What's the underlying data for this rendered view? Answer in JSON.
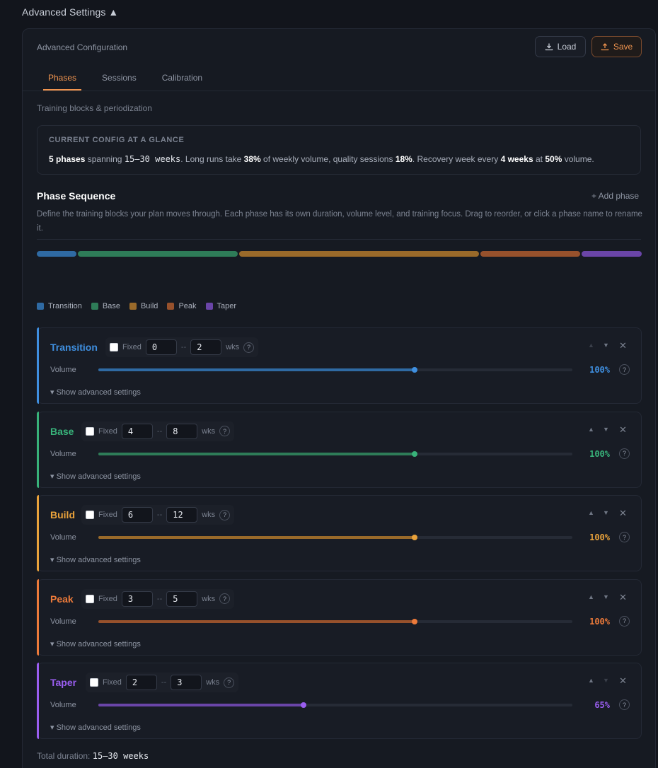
{
  "header": {
    "title": "Advanced Settings ▲"
  },
  "panel": {
    "title": "Advanced Configuration",
    "load_label": "Load",
    "save_label": "Save",
    "tabs": [
      {
        "label": "Phases",
        "active": true
      },
      {
        "label": "Sessions",
        "active": false
      },
      {
        "label": "Calibration",
        "active": false
      }
    ],
    "subtitle": "Training blocks & periodization"
  },
  "glance": {
    "heading": "CURRENT CONFIG AT A GLANCE",
    "phases_count": "5 phases",
    "spanning": "spanning",
    "weeks_range": "15–30 weeks",
    "long_runs_text": ". Long runs take",
    "long_runs_pct": "38%",
    "weekly_volume_text": "of weekly volume, quality sessions",
    "quality_pct": "18%",
    "recovery_text": ". Recovery week every",
    "recovery_weeks": "4 weeks",
    "at_text": "at",
    "recovery_pct": "50%",
    "volume_text": "volume."
  },
  "sequence": {
    "title": "Phase Sequence",
    "add_label": "+ Add phase",
    "description": "Define the training blocks your plan moves through. Each phase has its own duration, volume level, and training focus. Drag to reorder, or click a phase name to rename it."
  },
  "colors": {
    "transition": "#3f8fe0",
    "base": "#38b27a",
    "build": "#e9a23b",
    "peak": "#ec7a3a",
    "taper": "#9a5ef0",
    "accent": "#f0944f"
  },
  "timeline_segments": [
    {
      "phase": "Transition",
      "weeks": 2,
      "color": "#2f6aa3"
    },
    {
      "phase": "Base",
      "weeks": 8,
      "color": "#2e7c58"
    },
    {
      "phase": "Build",
      "weeks": 12,
      "color": "#9a6a2a"
    },
    {
      "phase": "Peak",
      "weeks": 5,
      "color": "#97512c"
    },
    {
      "phase": "Taper",
      "weeks": 3,
      "color": "#6a45a8"
    }
  ],
  "legend": [
    {
      "label": "Transition",
      "color": "#2f6aa3"
    },
    {
      "label": "Base",
      "color": "#2e7c58"
    },
    {
      "label": "Build",
      "color": "#9a6a2a"
    },
    {
      "label": "Peak",
      "color": "#97512c"
    },
    {
      "label": "Taper",
      "color": "#6a45a8"
    }
  ],
  "phases": [
    {
      "name": "Transition",
      "fixed_label": "Fixed",
      "min": "0",
      "max": "2",
      "sep": "--",
      "unit": "wks",
      "help": "?",
      "volume_label": "Volume",
      "volume_value": "100%",
      "volume_fraction": 0.667,
      "advanced_label": "Show advanced settings",
      "up": "▲",
      "down": "▼",
      "remove": "✕",
      "color": "#3f8fe0",
      "track": "#2f6aa3",
      "can_up": false,
      "can_down": true
    },
    {
      "name": "Base",
      "fixed_label": "Fixed",
      "min": "4",
      "max": "8",
      "sep": "--",
      "unit": "wks",
      "help": "?",
      "volume_label": "Volume",
      "volume_value": "100%",
      "volume_fraction": 0.667,
      "advanced_label": "Show advanced settings",
      "up": "▲",
      "down": "▼",
      "remove": "✕",
      "color": "#38b27a",
      "track": "#2e7c58",
      "can_up": true,
      "can_down": true
    },
    {
      "name": "Build",
      "fixed_label": "Fixed",
      "min": "6",
      "max": "12",
      "sep": "--",
      "unit": "wks",
      "help": "?",
      "volume_label": "Volume",
      "volume_value": "100%",
      "volume_fraction": 0.667,
      "advanced_label": "Show advanced settings",
      "up": "▲",
      "down": "▼",
      "remove": "✕",
      "color": "#e9a23b",
      "track": "#9a6a2a",
      "can_up": true,
      "can_down": true
    },
    {
      "name": "Peak",
      "fixed_label": "Fixed",
      "min": "3",
      "max": "5",
      "sep": "--",
      "unit": "wks",
      "help": "?",
      "volume_label": "Volume",
      "volume_value": "100%",
      "volume_fraction": 0.667,
      "advanced_label": "Show advanced settings",
      "up": "▲",
      "down": "▼",
      "remove": "✕",
      "color": "#ec7a3a",
      "track": "#97512c",
      "can_up": true,
      "can_down": true
    },
    {
      "name": "Taper",
      "fixed_label": "Fixed",
      "min": "2",
      "max": "3",
      "sep": "--",
      "unit": "wks",
      "help": "?",
      "volume_label": "Volume",
      "volume_value": "65%",
      "volume_fraction": 0.433,
      "advanced_label": "Show advanced settings",
      "up": "▲",
      "down": "▼",
      "remove": "✕",
      "color": "#9a5ef0",
      "track": "#6a45a8",
      "can_up": true,
      "can_down": false
    }
  ],
  "total": {
    "label": "Total duration:",
    "value": "15–30 weeks"
  }
}
